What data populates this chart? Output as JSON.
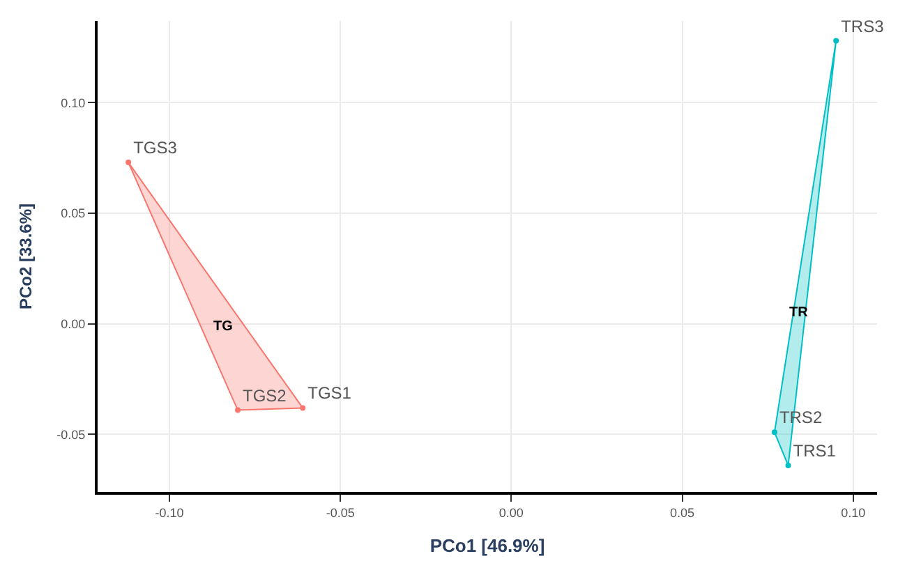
{
  "chart_data": {
    "type": "area",
    "xlabel": "PCo1 [46.9%]",
    "ylabel": "PCo2 [33.6%]",
    "xlim": [
      -0.121,
      0.107
    ],
    "ylim": [
      -0.076,
      0.137
    ],
    "xticks": [
      {
        "value": -0.1,
        "label": "-0.10"
      },
      -0.05,
      {
        "value": 0,
        "label": "0.00"
      },
      0.05,
      {
        "value": 0.1,
        "label": "0.10"
      }
    ],
    "yticks": [
      -0.05,
      {
        "value": 0,
        "label": "0.00"
      },
      0.05,
      {
        "value": 0.1,
        "label": "0.10"
      }
    ],
    "grid": true,
    "marker": "circle",
    "series": [
      {
        "name": "TG",
        "color": "#f8766d",
        "x": [
          -0.061,
          -0.08,
          -0.112
        ],
        "values": [
          -0.038,
          -0.039,
          0.073
        ],
        "value_labels": [
          "TGS1",
          "TGS2",
          "TGS3"
        ]
      },
      {
        "name": "TR",
        "color": "#00bfc4",
        "x": [
          0.081,
          0.077,
          0.095
        ],
        "values": [
          -0.064,
          -0.049,
          0.128
        ],
        "value_labels": [
          "TRS1",
          "TRS2",
          "TRS3"
        ]
      }
    ]
  }
}
